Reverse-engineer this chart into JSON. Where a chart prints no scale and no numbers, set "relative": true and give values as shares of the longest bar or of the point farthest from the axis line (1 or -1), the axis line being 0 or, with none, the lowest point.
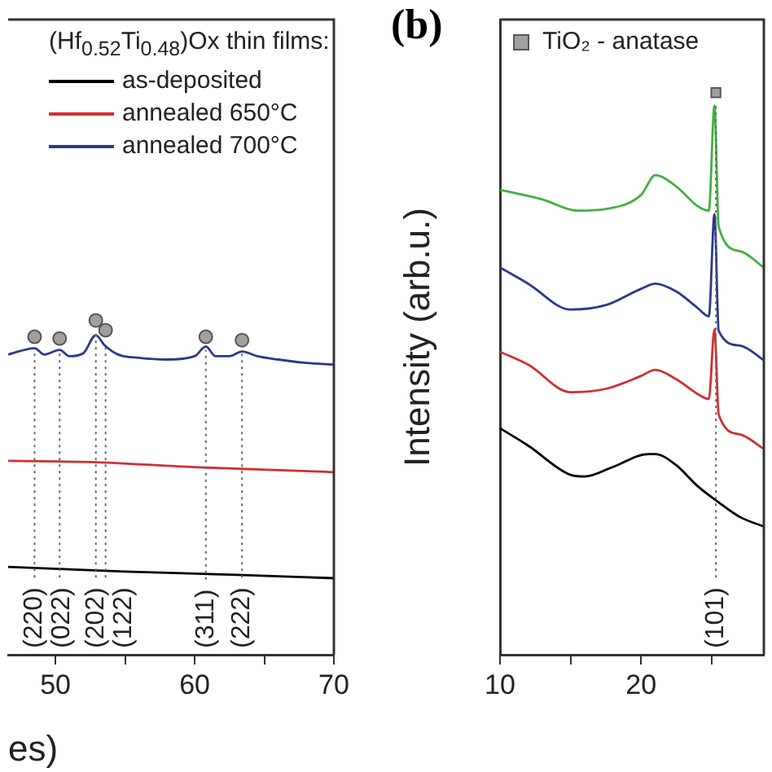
{
  "chart_data": [
    {
      "type": "line",
      "relative": true,
      "xlabel": "es)",
      "xlim": [
        46.6,
        70
      ],
      "xticks": [
        50,
        {
          "value": 55,
          "label": null
        },
        60,
        {
          "value": 65,
          "label": null
        },
        70
      ],
      "legend": "top right",
      "legend_title": "(Hf$_{0.52}$Ti$_{0.48}$)Ox thin films:",
      "ref_lines": [
        {
          "axis": "x",
          "value": 48.5,
          "line_style": "dotted"
        },
        {
          "axis": "x",
          "value": 50.3,
          "line_style": "dotted"
        },
        {
          "axis": "x",
          "value": 52.9,
          "line_style": "dotted"
        },
        {
          "axis": "x",
          "value": 53.6,
          "line_style": "dotted"
        },
        {
          "axis": "x",
          "value": 60.8,
          "line_style": "dotted"
        },
        {
          "axis": "x",
          "value": 63.4,
          "line_style": "dotted"
        }
      ],
      "annotations": [
        "(220)",
        "(022)",
        "(202)",
        "(122)",
        "(311)",
        "(222)"
      ],
      "series": [
        {
          "name": "as-deposited",
          "color": "#000000",
          "marker": "none",
          "x": [
            46.6,
            55,
            63,
            70
          ],
          "values": [
            0.263,
            0.249,
            0.239,
            0.229
          ]
        },
        {
          "name": "annealed 650°C",
          "color": "#d03030",
          "marker": "none",
          "x": [
            46.6,
            52.9,
            60,
            63.4,
            67,
            70
          ],
          "values": [
            0.58,
            0.576,
            0.561,
            0.556,
            0.551,
            0.546
          ]
        },
        {
          "name": "annealed 700°C",
          "color": "#2b3a8c",
          "marker": "none",
          "x": [
            46.6,
            48.5,
            49.2,
            50.3,
            51,
            52,
            52.9,
            53.5,
            54.5,
            56,
            58,
            60,
            60.8,
            61.5,
            62.5,
            63.4,
            64.5,
            66,
            68,
            70
          ],
          "values": [
            0.898,
            0.917,
            0.898,
            0.912,
            0.893,
            0.902,
            0.956,
            0.927,
            0.898,
            0.888,
            0.883,
            0.893,
            0.922,
            0.893,
            0.893,
            0.907,
            0.893,
            0.883,
            0.873,
            0.868
          ]
        },
        {
          "type": "scatter",
          "color": "#a0a0a0",
          "marker": "circle",
          "x": [
            48.5,
            50.3,
            52.9,
            53.6,
            60.8,
            63.4
          ],
          "values": [
            0.951,
            0.946,
            1.0,
            0.971,
            0.951,
            0.941
          ]
        }
      ]
    },
    {
      "type": "line",
      "relative": true,
      "title": "(b)",
      "ylabel": "Intensity (arb.u.)",
      "xlim": [
        10,
        28.7
      ],
      "xticks": [
        10,
        {
          "value": 15,
          "label": null
        },
        20,
        {
          "value": 25,
          "label": null
        }
      ],
      "legend": "top left",
      "ref_lines": [
        {
          "axis": "x",
          "value": 25.3,
          "line_style": "dotted"
        }
      ],
      "annotations": [
        "(101)"
      ],
      "series": [
        {
          "color": "#40b040",
          "marker": "none",
          "x": [
            10,
            13,
            15.5,
            17.5,
            20,
            21,
            22.5,
            24,
            24.8,
            25.2,
            25.5,
            27,
            28.7
          ],
          "values": [
            0.827,
            0.81,
            0.79,
            0.793,
            0.818,
            0.853,
            0.833,
            0.798,
            0.79,
            0.977,
            0.761,
            0.718,
            0.689
          ]
        },
        {
          "color": "#2b3a8c",
          "marker": "none",
          "x": [
            10,
            12,
            15,
            17.5,
            20,
            21,
            22.5,
            24,
            24.8,
            25.2,
            25.5,
            27,
            28.7
          ],
          "values": [
            0.689,
            0.66,
            0.614,
            0.622,
            0.651,
            0.66,
            0.646,
            0.617,
            0.602,
            0.784,
            0.576,
            0.55,
            0.524
          ]
        },
        {
          "color": "#d03030",
          "marker": "none",
          "x": [
            10,
            12,
            15,
            17.5,
            20,
            21,
            22.5,
            24,
            24.8,
            25.2,
            25.5,
            27,
            28.7
          ],
          "values": [
            0.539,
            0.516,
            0.467,
            0.473,
            0.496,
            0.507,
            0.49,
            0.464,
            0.455,
            0.579,
            0.427,
            0.392,
            0.366
          ]
        },
        {
          "color": "#000000",
          "marker": "none",
          "x": [
            10,
            12,
            15,
            16,
            18,
            20.5,
            21,
            22.5,
            24,
            25.5,
            27,
            28.7
          ],
          "values": [
            0.403,
            0.372,
            0.32,
            0.317,
            0.334,
            0.357,
            0.357,
            0.337,
            0.3,
            0.271,
            0.245,
            0.228
          ]
        },
        {
          "type": "scatter",
          "name": "TiO₂ - anatase",
          "color": "#a0a0a0",
          "marker": "square",
          "x": [
            25.3
          ],
          "values": [
            1.0
          ]
        }
      ]
    }
  ]
}
